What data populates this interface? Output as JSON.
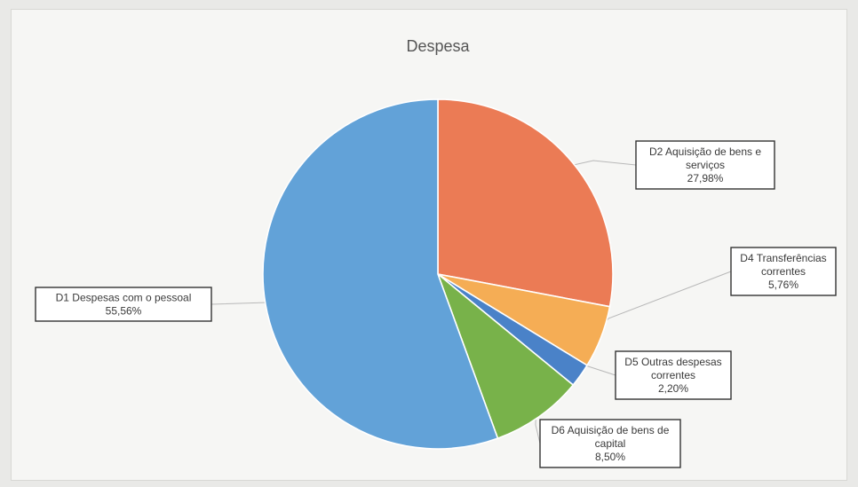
{
  "chart_data": {
    "type": "pie",
    "title": "Despesa",
    "slices": [
      {
        "category": "D2 Aquisição de bens e serviços",
        "value": 27.98,
        "label_lines": [
          "D2 Aquisição de bens e",
          "serviços",
          "27,98%"
        ],
        "color": "#eb7b55"
      },
      {
        "category": "D4 Transferências correntes",
        "value": 5.76,
        "label_lines": [
          "D4 Transferências",
          "correntes",
          "5,76%"
        ],
        "color": "#f5ad55"
      },
      {
        "category": "D5 Outras despesas correntes",
        "value": 2.2,
        "label_lines": [
          "D5 Outras despesas",
          "correntes",
          "2,20%"
        ],
        "color": "#4a82c8"
      },
      {
        "category": "D6 Aquisição de bens de capital",
        "value": 8.5,
        "label_lines": [
          "D6 Aquisição de bens de",
          "capital",
          "8,50%"
        ],
        "color": "#78b24a"
      },
      {
        "category": "D1 Despesas com o pessoal",
        "value": 55.56,
        "label_lines": [
          "D1 Despesas com o pessoal",
          "55,56%"
        ],
        "color": "#62a2d8"
      }
    ],
    "start_angle_deg": 0,
    "direction": "clockwise",
    "legend": "none",
    "labels": "callout boxes"
  }
}
